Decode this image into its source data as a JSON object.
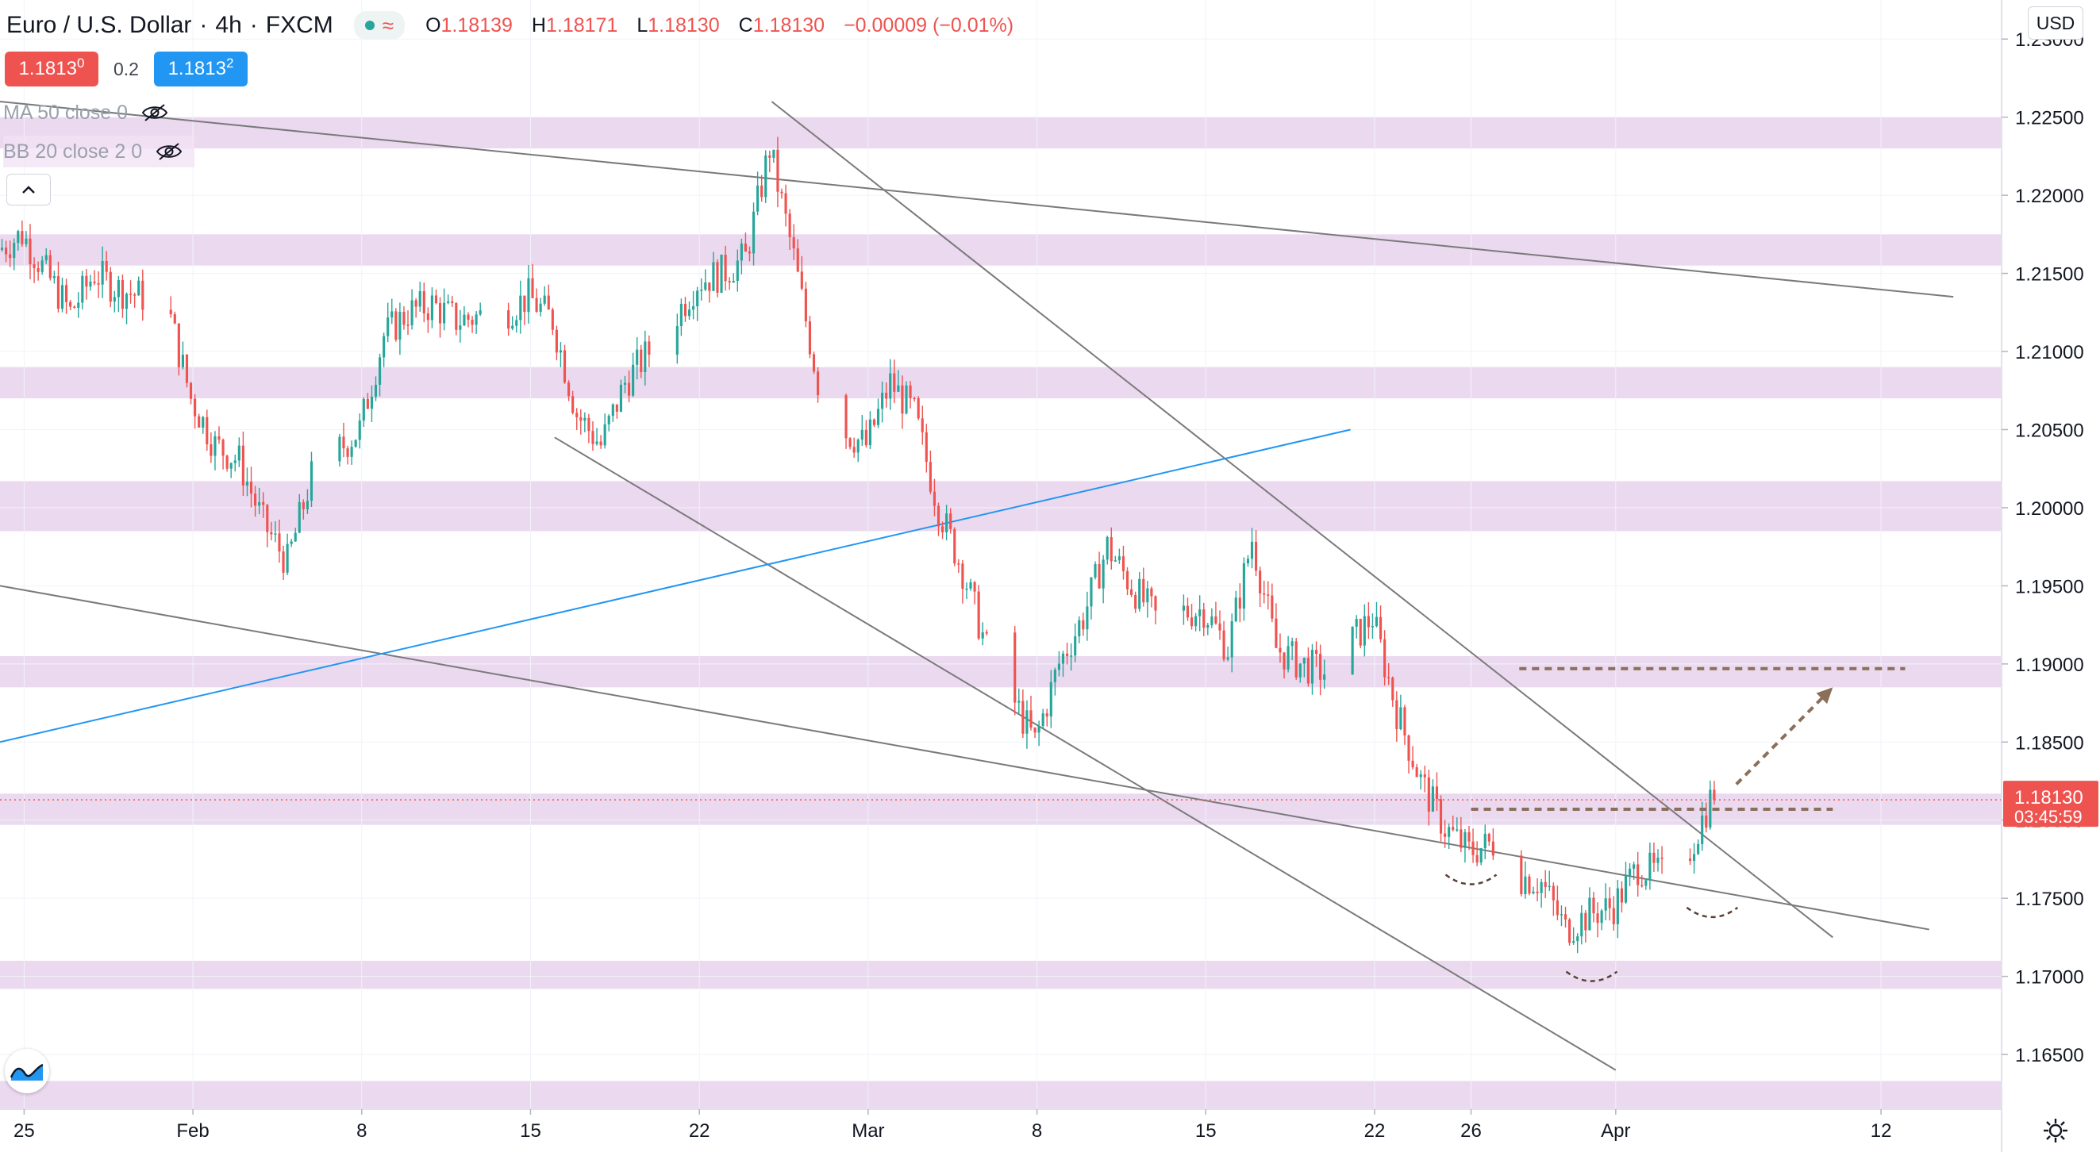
{
  "header": {
    "symbol_title": "Euro / U.S. Dollar",
    "timeframe": "4h",
    "exchange": "FXCM",
    "market_status_icon": "green-dot-icon",
    "wave_icon": "≈",
    "ohlc": {
      "open_key": "O",
      "open": "1.18139",
      "high_key": "H",
      "high": "1.18171",
      "low_key": "L",
      "low": "1.18130",
      "close_key": "C",
      "close": "1.18130",
      "change": "−0.00009 (−0.01%)"
    }
  },
  "quote": {
    "sell_main": "1.1813",
    "sell_sup": "0",
    "spread": "0.2",
    "buy_main": "1.1813",
    "buy_sup": "2"
  },
  "indicators": [
    {
      "label": "MA 50 close 0",
      "icon": "eye-off-icon"
    },
    {
      "label": "BB 20 close 2 0",
      "icon": "eye-off-icon"
    }
  ],
  "currency_button": "USD",
  "colors": {
    "up": "#26a69a",
    "down": "#ef5350",
    "zone": "#e1c5e6",
    "trend": "#7a7a7a",
    "blue_line": "#2196f3",
    "projection": "#8b6f5a"
  },
  "chart_data": {
    "type": "candlestick",
    "instrument": "Euro / U.S. Dollar",
    "interval": "4h",
    "x_range": [
      "2021-01-24",
      "2021-04-17"
    ],
    "y_range": [
      1.1615,
      1.2325
    ],
    "x_ticks": [
      {
        "label": "25",
        "date": "2021-01-25"
      },
      {
        "label": "Feb",
        "date": "2021-02-01"
      },
      {
        "label": "8",
        "date": "2021-02-08"
      },
      {
        "label": "15",
        "date": "2021-02-15"
      },
      {
        "label": "22",
        "date": "2021-02-22"
      },
      {
        "label": "Mar",
        "date": "2021-03-01"
      },
      {
        "label": "8",
        "date": "2021-03-08"
      },
      {
        "label": "15",
        "date": "2021-03-15"
      },
      {
        "label": "22",
        "date": "2021-03-22"
      },
      {
        "label": "26",
        "date": "2021-03-26"
      },
      {
        "label": "Apr",
        "date": "2021-04-01"
      },
      {
        "label": "12",
        "date": "2021-04-12"
      }
    ],
    "y_ticks": [
      "1.16500",
      "1.17000",
      "1.17500",
      "1.18000",
      "1.18500",
      "1.19000",
      "1.19500",
      "1.20000",
      "1.20500",
      "1.21000",
      "1.21500",
      "1.22000",
      "1.22500",
      "1.23000"
    ],
    "last_price": {
      "label": "1.18130",
      "countdown": "03:45:59",
      "value": 1.1813
    },
    "price_path": [
      [
        "2021-01-24",
        1.2165
      ],
      [
        "2021-01-25",
        1.2175
      ],
      [
        "2021-01-26",
        1.215
      ],
      [
        "2021-01-27",
        1.2125
      ],
      [
        "2021-01-28",
        1.215
      ],
      [
        "2021-01-29",
        1.214
      ],
      [
        "2021-01-31",
        1.213
      ],
      [
        "2021-02-01",
        1.207
      ],
      [
        "2021-02-02",
        1.204
      ],
      [
        "2021-02-03",
        1.203
      ],
      [
        "2021-02-04",
        1.199
      ],
      [
        "2021-02-05",
        1.1965
      ],
      [
        "2021-02-06",
        1.202
      ],
      [
        "2021-02-08",
        1.205
      ],
      [
        "2021-02-09",
        1.211
      ],
      [
        "2021-02-10",
        1.2125
      ],
      [
        "2021-02-11",
        1.213
      ],
      [
        "2021-02-12",
        1.212
      ],
      [
        "2021-02-14",
        1.2125
      ],
      [
        "2021-02-15",
        1.2135
      ],
      [
        "2021-02-16",
        1.212
      ],
      [
        "2021-02-17",
        1.206
      ],
      [
        "2021-02-18",
        1.204
      ],
      [
        "2021-02-19",
        1.208
      ],
      [
        "2021-02-21",
        1.212
      ],
      [
        "2021-02-22",
        1.2145
      ],
      [
        "2021-02-23",
        1.215
      ],
      [
        "2021-02-24",
        1.216
      ],
      [
        "2021-02-25",
        1.223
      ],
      [
        "2021-02-26",
        1.216
      ],
      [
        "2021-02-27",
        1.208
      ],
      [
        "2021-02-28",
        1.205
      ],
      [
        "2021-03-01",
        1.204
      ],
      [
        "2021-03-02",
        1.208
      ],
      [
        "2021-03-03",
        1.206
      ],
      [
        "2021-03-04",
        1.2
      ],
      [
        "2021-03-05",
        1.196
      ],
      [
        "2021-03-06",
        1.191
      ],
      [
        "2021-03-08",
        1.185
      ],
      [
        "2021-03-09",
        1.19
      ],
      [
        "2021-03-10",
        1.193
      ],
      [
        "2021-03-11",
        1.1975
      ],
      [
        "2021-03-12",
        1.195
      ],
      [
        "2021-03-13",
        1.193
      ],
      [
        "2021-03-15",
        1.1935
      ],
      [
        "2021-03-16",
        1.191
      ],
      [
        "2021-03-17",
        1.198
      ],
      [
        "2021-03-18",
        1.191
      ],
      [
        "2021-03-19",
        1.19
      ],
      [
        "2021-03-20",
        1.1895
      ],
      [
        "2021-03-22",
        1.193
      ],
      [
        "2021-03-23",
        1.187
      ],
      [
        "2021-03-24",
        1.1825
      ],
      [
        "2021-03-25",
        1.1795
      ],
      [
        "2021-03-26",
        1.178
      ],
      [
        "2021-03-27",
        1.1785
      ],
      [
        "2021-03-28",
        1.1765
      ],
      [
        "2021-03-29",
        1.176
      ],
      [
        "2021-03-30",
        1.173
      ],
      [
        "2021-03-31",
        1.174
      ],
      [
        "2021-04-01",
        1.1745
      ],
      [
        "2021-04-02",
        1.177
      ],
      [
        "2021-04-03",
        1.1765
      ],
      [
        "2021-04-04",
        1.1775
      ],
      [
        "2021-04-05",
        1.1813
      ]
    ],
    "zones": [
      {
        "low": 1.223,
        "high": 1.225
      },
      {
        "low": 1.2155,
        "high": 1.2175
      },
      {
        "low": 1.207,
        "high": 1.209
      },
      {
        "low": 1.1985,
        "high": 1.2017
      },
      {
        "low": 1.1885,
        "high": 1.1905
      },
      {
        "low": 1.1797,
        "high": 1.1817
      },
      {
        "low": 1.1692,
        "high": 1.171
      },
      {
        "low": 1.1615,
        "high": 1.1633
      }
    ],
    "trendlines": [
      {
        "kind": "gray",
        "from": [
          "2021-01-24",
          1.226
        ],
        "to": [
          "2021-04-15",
          1.2135
        ]
      },
      {
        "kind": "gray",
        "from": [
          "2021-02-25",
          1.226
        ],
        "to": [
          "2021-04-10",
          1.1725
        ]
      },
      {
        "kind": "gray",
        "from": [
          "2021-02-16",
          1.2045
        ],
        "to": [
          "2021-04-01",
          1.164
        ]
      },
      {
        "kind": "gray",
        "from": [
          "2021-01-24",
          1.195
        ],
        "to": [
          "2021-04-14",
          1.173
        ]
      },
      {
        "kind": "blue",
        "from": [
          "2021-01-24",
          1.185
        ],
        "to": [
          "2021-03-21",
          1.205
        ]
      }
    ],
    "levels": [
      {
        "price": 1.1897,
        "from": "2021-03-28",
        "to": "2021-04-13"
      },
      {
        "price": 1.1807,
        "from": "2021-03-26",
        "to": "2021-04-10"
      }
    ],
    "projection_arrow": {
      "from": [
        "2021-04-06",
        1.1823
      ],
      "to": [
        "2021-04-10",
        1.1885
      ]
    },
    "pattern_arcs": [
      {
        "center": [
          "2021-03-26",
          1.1762
        ],
        "depth": 0.0003
      },
      {
        "center": [
          "2021-03-31",
          1.17
        ],
        "depth": 0.0003
      },
      {
        "center": [
          "2021-04-05",
          1.1741
        ],
        "depth": 0.0003
      }
    ]
  }
}
